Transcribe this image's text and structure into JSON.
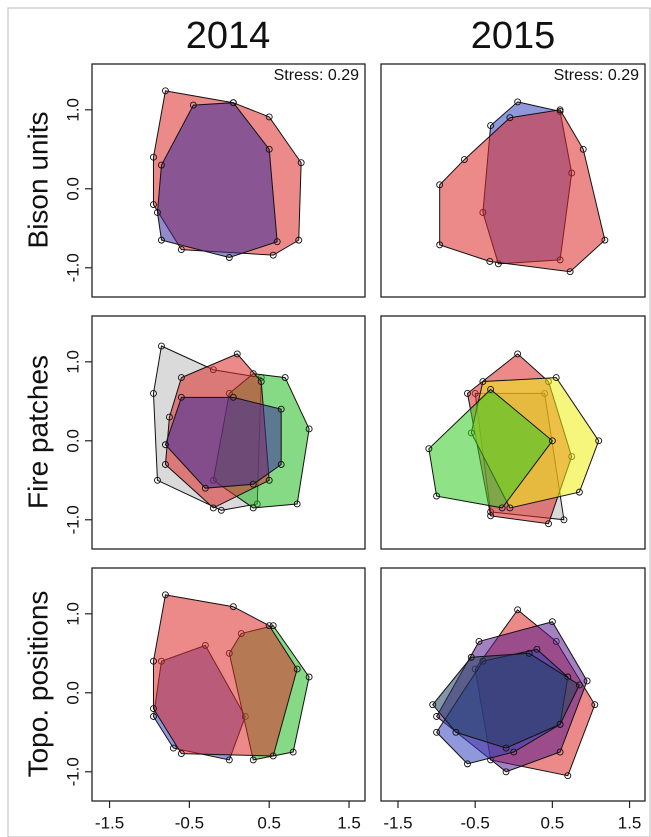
{
  "column_titles": [
    "2014",
    "2015"
  ],
  "row_titles": [
    "Bison units",
    "Fire patches",
    "Topo. positions"
  ],
  "chart_data": [
    {
      "type": "hull",
      "annotation": "Stress: 0.29",
      "xlim": [
        -1.72,
        1.7
      ],
      "ylim": [
        -1.37,
        1.58
      ],
      "yticks": [
        {
          "value": -1,
          "label": "-1.0"
        },
        {
          "value": 0,
          "label": "0.0"
        },
        {
          "value": 1,
          "label": "1.0"
        }
      ],
      "series": [
        {
          "color": "#dd2a2a",
          "x": [
            -0.8,
            0.05,
            0.5,
            0.9,
            0.87,
            0.55,
            -0.6,
            -0.95,
            -0.95
          ],
          "y": [
            1.24,
            1.09,
            0.91,
            0.33,
            -0.65,
            -0.84,
            -0.77,
            -0.2,
            0.4
          ]
        },
        {
          "color": "#3a2a9a",
          "x": [
            -0.45,
            0.05,
            0.5,
            0.6,
            0,
            -0.85,
            -0.9,
            -0.85
          ],
          "y": [
            1.06,
            1.09,
            0.5,
            -0.67,
            -0.87,
            -0.65,
            -0.3,
            0.3
          ]
        }
      ]
    },
    {
      "type": "hull",
      "annotation": "Stress: 0.29",
      "xlim": [
        -1.72,
        1.7
      ],
      "ylim": [
        -1.37,
        1.58
      ],
      "series": [
        {
          "color": "#3344bb",
          "x": [
            0.05,
            0.6,
            0.75,
            0.6,
            -0.2,
            -0.4,
            -0.3
          ],
          "y": [
            1.1,
            0.98,
            0.2,
            -0.9,
            -0.95,
            -0.3,
            0.8
          ]
        },
        {
          "color": "#dd2a2a",
          "x": [
            -0.96,
            -0.64,
            -0.05,
            0.6,
            0.9,
            1.18,
            0.73,
            -0.31,
            -0.96
          ],
          "y": [
            0.05,
            0.37,
            0.9,
            1.0,
            0.5,
            -0.65,
            -1.05,
            -0.92,
            -0.71
          ]
        }
      ]
    },
    {
      "type": "hull",
      "xlim": [
        -1.72,
        1.7
      ],
      "ylim": [
        -1.37,
        1.58
      ],
      "yticks": [
        {
          "value": -1,
          "label": "-1.0"
        },
        {
          "value": 0,
          "label": "0.0"
        },
        {
          "value": 1,
          "label": "1.0"
        }
      ],
      "series": [
        {
          "color": "#bbbbbb",
          "x": [
            -0.85,
            -0.2,
            0.4,
            0.35,
            -0.1,
            -0.9,
            -0.95
          ],
          "y": [
            1.2,
            0.9,
            0.8,
            -0.8,
            -0.88,
            -0.5,
            0.6
          ]
        },
        {
          "color": "#22bb22",
          "x": [
            0.3,
            0.7,
            1.0,
            0.85,
            0.3,
            -0.2,
            0
          ],
          "y": [
            0.85,
            0.8,
            0.15,
            -0.8,
            -0.85,
            -0.5,
            0.6
          ]
        },
        {
          "color": "#dd2a2a",
          "x": [
            -0.6,
            0.1,
            0.4,
            0.5,
            -0.2,
            -0.8,
            -0.75
          ],
          "y": [
            0.8,
            1.1,
            0.75,
            -0.5,
            -0.85,
            -0.3,
            0.3
          ]
        },
        {
          "color": "#3a2a9a",
          "x": [
            -0.6,
            0.05,
            0.65,
            0.65,
            0.3,
            -0.3,
            -0.8
          ],
          "y": [
            0.55,
            0.55,
            0.4,
            -0.3,
            -0.55,
            -0.6,
            -0.05
          ]
        }
      ]
    },
    {
      "type": "hull",
      "xlim": [
        -1.72,
        1.7
      ],
      "ylim": [
        -1.37,
        1.58
      ],
      "series": [
        {
          "color": "#bbbbbb",
          "x": [
            -0.5,
            0.4,
            0.65,
            -0.3
          ],
          "y": [
            0.6,
            0.6,
            -1.0,
            -0.9
          ]
        },
        {
          "color": "#dd2a2a",
          "x": [
            0.05,
            0.45,
            0.75,
            0.45,
            -0.3,
            -0.6
          ],
          "y": [
            1.1,
            0.75,
            -0.2,
            -1.05,
            -0.95,
            0.6
          ]
        },
        {
          "color": "#eeee11",
          "x": [
            -0.4,
            0.55,
            1.1,
            0.85,
            -0.05,
            -0.55
          ],
          "y": [
            0.75,
            0.8,
            0.0,
            -0.65,
            -0.85,
            0.1
          ]
        },
        {
          "color": "#33cc22",
          "x": [
            -1.1,
            -0.3,
            0.5,
            -0.15,
            -1.0
          ],
          "y": [
            -0.1,
            0.65,
            0.0,
            -0.85,
            -0.7
          ]
        }
      ]
    },
    {
      "type": "hull",
      "xlim": [
        -1.72,
        1.7
      ],
      "ylim": [
        -1.37,
        1.58
      ],
      "yticks": [
        {
          "value": -1,
          "label": "-1.0"
        },
        {
          "value": 0,
          "label": "0.0"
        },
        {
          "value": 1,
          "label": "1.0"
        }
      ],
      "xticks": [
        -1.5,
        -0.5,
        0.5,
        1.5
      ],
      "series": [
        {
          "color": "#3344bb",
          "x": [
            -0.85,
            -0.3,
            0.2,
            0,
            -0.7,
            -0.95
          ],
          "y": [
            0.4,
            0.6,
            -0.3,
            -0.85,
            -0.7,
            -0.3
          ]
        },
        {
          "color": "#22bb22",
          "x": [
            0.15,
            0.55,
            1.0,
            0.8,
            0.3,
            0
          ],
          "y": [
            0.75,
            0.85,
            0.2,
            -0.75,
            -0.85,
            0.5
          ]
        },
        {
          "color": "#dd2a2a",
          "x": [
            -0.8,
            0.05,
            0.5,
            0.85,
            0.55,
            -0.6,
            -0.95,
            -0.95
          ],
          "y": [
            1.24,
            1.09,
            0.85,
            0.3,
            -0.8,
            -0.77,
            -0.2,
            0.4
          ]
        }
      ]
    },
    {
      "type": "hull",
      "xlim": [
        -1.72,
        1.7
      ],
      "ylim": [
        -1.37,
        1.58
      ],
      "xticks": [
        -1.5,
        -0.5,
        0.5,
        1.5
      ],
      "series": [
        {
          "color": "#dd2a2a",
          "x": [
            0.05,
            0.55,
            1.05,
            0.7,
            -0.3,
            -0.5
          ],
          "y": [
            1.05,
            0.65,
            -0.15,
            -1.05,
            -0.85,
            0.3
          ]
        },
        {
          "color": "#5a1a8a",
          "x": [
            -0.45,
            0.5,
            0.95,
            0.6,
            -0.1,
            -1.0
          ],
          "y": [
            0.65,
            0.9,
            0.15,
            -0.75,
            -1.0,
            -0.3
          ]
        },
        {
          "color": "#3344bb",
          "x": [
            -1.0,
            -0.4,
            0.3,
            0.7,
            0.6,
            0.0,
            -0.6
          ],
          "y": [
            -0.5,
            0.4,
            0.55,
            0.2,
            -0.4,
            -0.75,
            -0.9
          ]
        },
        {
          "color": "#1f3f5f",
          "x": [
            -0.55,
            0.2,
            0.85,
            0.6,
            -0.1,
            -0.75,
            -1.05
          ],
          "y": [
            0.45,
            0.5,
            0.1,
            -0.4,
            -0.7,
            -0.5,
            -0.15
          ]
        }
      ]
    }
  ]
}
